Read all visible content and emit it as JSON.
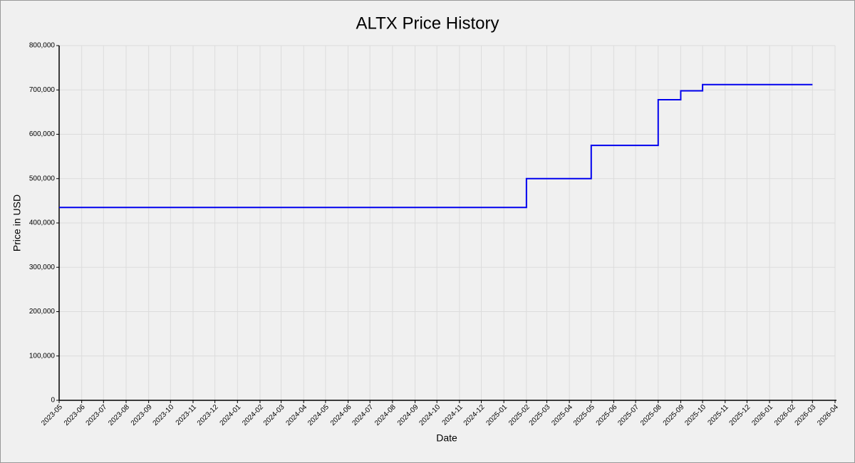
{
  "chart_data": {
    "type": "line",
    "step": "post",
    "title": "ALTX Price History",
    "x_label": "Date",
    "y_label": "Price in USD",
    "x": [
      "2023-05",
      "2025-02",
      "2025-05",
      "2025-05",
      "2025-08",
      "2025-08",
      "2025-09",
      "2025-10",
      "2026-03"
    ],
    "values": [
      435000,
      500000,
      543000,
      575000,
      650000,
      678000,
      698000,
      712000,
      712000
    ],
    "color": "#0000ee",
    "xlim": [
      "2023-05",
      "2026-04"
    ],
    "xticks": [
      "2023-05",
      "2023-06",
      "2023-07",
      "2023-08",
      "2023-09",
      "2023-10",
      "2023-11",
      "2023-12",
      "2024-01",
      "2024-02",
      "2024-03",
      "2024-04",
      "2024-05",
      "2024-06",
      "2024-07",
      "2024-08",
      "2024-09",
      "2024-10",
      "2024-11",
      "2024-12",
      "2025-01",
      "2025-02",
      "2025-03",
      "2025-04",
      "2025-05",
      "2025-06",
      "2025-07",
      "2025-08",
      "2025-09",
      "2025-10",
      "2025-11",
      "2025-12",
      "2026-01",
      "2026-02",
      "2026-03",
      "2026-04"
    ],
    "ylim": [
      0,
      800000
    ],
    "yticks": [
      0,
      {
        "value": 100000,
        "label": "100,000"
      },
      {
        "value": 200000,
        "label": "200,000"
      },
      {
        "value": 300000,
        "label": "300,000"
      },
      {
        "value": 400000,
        "label": "400,000"
      },
      {
        "value": 500000,
        "label": "500,000"
      },
      {
        "value": 600000,
        "label": "600,000"
      },
      {
        "value": 700000,
        "label": "700,000"
      },
      {
        "value": 800000,
        "label": "800,000"
      }
    ],
    "grid": true
  }
}
